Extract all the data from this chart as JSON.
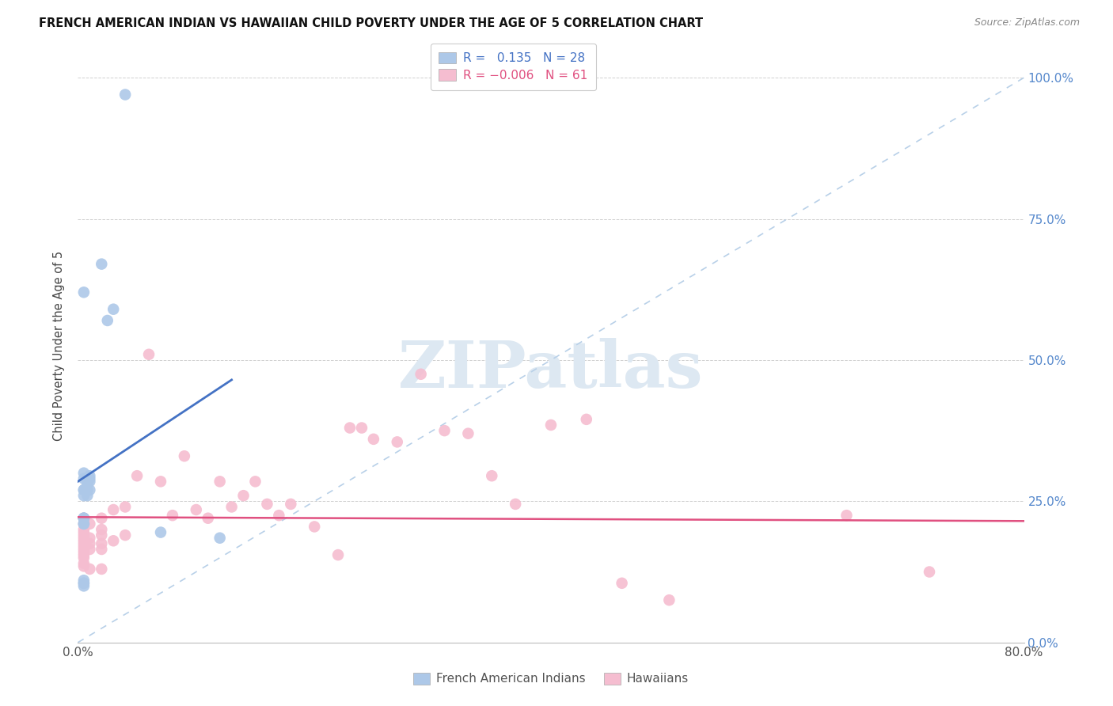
{
  "title": "FRENCH AMERICAN INDIAN VS HAWAIIAN CHILD POVERTY UNDER THE AGE OF 5 CORRELATION CHART",
  "source": "Source: ZipAtlas.com",
  "ylabel": "Child Poverty Under the Age of 5",
  "xlim": [
    0,
    0.8
  ],
  "ylim": [
    0,
    1.05
  ],
  "yticks": [
    0.0,
    0.25,
    0.5,
    0.75,
    1.0
  ],
  "ytick_labels": [
    "0.0%",
    "25.0%",
    "50.0%",
    "75.0%",
    "100.0%"
  ],
  "xticks": [
    0.0,
    0.2,
    0.4,
    0.6,
    0.8
  ],
  "xtick_labels": [
    "0.0%",
    "",
    "",
    "",
    "80.0%"
  ],
  "blue_R": 0.135,
  "blue_N": 28,
  "pink_R": -0.006,
  "pink_N": 61,
  "blue_color": "#adc8e8",
  "pink_color": "#f5bdd0",
  "blue_line_color": "#4472c4",
  "pink_line_color": "#e05080",
  "dashed_line_color": "#b8d0e8",
  "watermark_text": "ZIPatlas",
  "watermark_color": "#dde8f2",
  "blue_scatter_x": [
    0.04,
    0.005,
    0.02,
    0.025,
    0.03,
    0.005,
    0.005,
    0.005,
    0.008,
    0.008,
    0.008,
    0.01,
    0.01,
    0.005,
    0.005,
    0.01,
    0.005,
    0.005,
    0.005,
    0.005,
    0.005,
    0.01,
    0.005,
    0.005,
    0.005,
    0.12,
    0.005,
    0.07
  ],
  "blue_scatter_y": [
    0.97,
    0.62,
    0.67,
    0.57,
    0.59,
    0.3,
    0.29,
    0.27,
    0.28,
    0.27,
    0.26,
    0.29,
    0.27,
    0.27,
    0.26,
    0.295,
    0.22,
    0.22,
    0.21,
    0.21,
    0.22,
    0.285,
    0.105,
    0.105,
    0.11,
    0.185,
    0.1,
    0.195
  ],
  "pink_scatter_x": [
    0.005,
    0.005,
    0.005,
    0.005,
    0.005,
    0.005,
    0.005,
    0.005,
    0.005,
    0.005,
    0.005,
    0.005,
    0.005,
    0.005,
    0.005,
    0.01,
    0.01,
    0.01,
    0.01,
    0.01,
    0.02,
    0.02,
    0.02,
    0.02,
    0.02,
    0.02,
    0.03,
    0.03,
    0.04,
    0.04,
    0.05,
    0.06,
    0.07,
    0.08,
    0.09,
    0.1,
    0.11,
    0.12,
    0.13,
    0.14,
    0.15,
    0.16,
    0.17,
    0.18,
    0.2,
    0.22,
    0.23,
    0.24,
    0.25,
    0.27,
    0.29,
    0.31,
    0.33,
    0.35,
    0.37,
    0.4,
    0.43,
    0.46,
    0.5,
    0.65,
    0.72
  ],
  "pink_scatter_y": [
    0.22,
    0.21,
    0.2,
    0.195,
    0.19,
    0.185,
    0.18,
    0.175,
    0.17,
    0.165,
    0.16,
    0.155,
    0.15,
    0.14,
    0.135,
    0.21,
    0.185,
    0.175,
    0.165,
    0.13,
    0.22,
    0.2,
    0.19,
    0.175,
    0.165,
    0.13,
    0.235,
    0.18,
    0.24,
    0.19,
    0.295,
    0.51,
    0.285,
    0.225,
    0.33,
    0.235,
    0.22,
    0.285,
    0.24,
    0.26,
    0.285,
    0.245,
    0.225,
    0.245,
    0.205,
    0.155,
    0.38,
    0.38,
    0.36,
    0.355,
    0.475,
    0.375,
    0.37,
    0.295,
    0.245,
    0.385,
    0.395,
    0.105,
    0.075,
    0.225,
    0.125
  ],
  "blue_line_x": [
    0.0,
    0.13
  ],
  "blue_line_y": [
    0.285,
    0.465
  ],
  "pink_line_x": [
    0.0,
    0.8
  ],
  "pink_line_y": [
    0.222,
    0.215
  ]
}
